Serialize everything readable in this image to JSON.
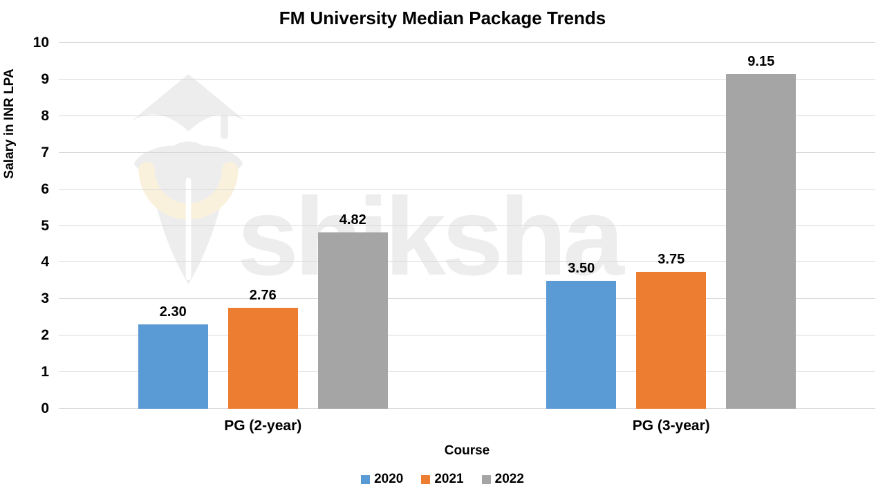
{
  "chart_data": {
    "type": "bar",
    "title": "FM University Median Package Trends",
    "xlabel": "Course",
    "ylabel": "Salary in INR LPA",
    "ylim": [
      0,
      10
    ],
    "yticks": [
      0,
      1,
      2,
      3,
      4,
      5,
      6,
      7,
      8,
      9,
      10
    ],
    "grid": true,
    "legend_position": "bottom-center",
    "categories": [
      "PG (2-year)",
      "PG (3-year)"
    ],
    "series": [
      {
        "name": "2020",
        "color": "#5B9BD5",
        "values": [
          2.3,
          3.5
        ],
        "labels": [
          "2.30",
          "3.50"
        ]
      },
      {
        "name": "2021",
        "color": "#ED7D31",
        "values": [
          2.76,
          3.75
        ],
        "labels": [
          "2.76",
          "3.75"
        ]
      },
      {
        "name": "2022",
        "color": "#A5A5A5",
        "values": [
          4.82,
          9.15
        ],
        "labels": [
          "4.82",
          "9.15"
        ]
      }
    ],
    "colors": {
      "gridline": "#D9D9D9",
      "text": "#000000",
      "background": "#FFFFFF"
    }
  },
  "watermark": {
    "text": "shiksha",
    "icon": "shiksha-graduation-cap-pen-logo",
    "text_color": "#EDEDED",
    "icon_color": "#EDEDED",
    "accent_color": "#F9F1DC"
  }
}
